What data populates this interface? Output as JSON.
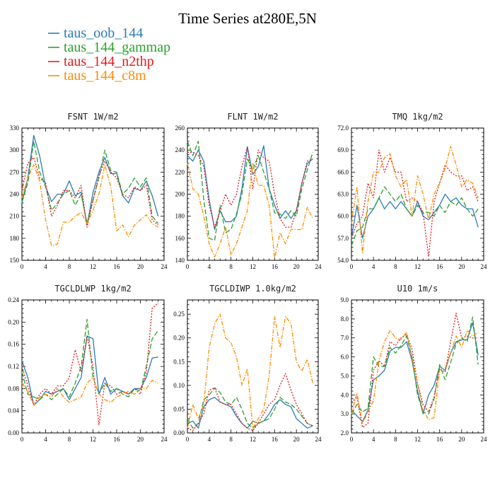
{
  "figure": {
    "title": "Time Series at280E,5N",
    "legend": [
      {
        "name": "taus_oob_144",
        "color": "#2b7bb9",
        "dash": "solid"
      },
      {
        "name": "taus_144_gammap",
        "color": "#2ca02c",
        "dash": "longdash"
      },
      {
        "name": "taus_144_n2thp",
        "color": "#e41a1c",
        "dash": "dot"
      },
      {
        "name": "taus_144_c8m",
        "color": "#ff8c00",
        "dash": "dashdot"
      }
    ]
  },
  "chart_data": [
    {
      "type": "line",
      "title": "FSNT   1W/m2",
      "xlim": [
        0,
        24
      ],
      "ylim": [
        150,
        330
      ],
      "xticks": [
        "0",
        "4",
        "8",
        "12",
        "16",
        "20",
        "24"
      ],
      "xtick_values": [
        0,
        4,
        8,
        12,
        16,
        20,
        24
      ],
      "yticks": [
        "150",
        "180",
        "210",
        "240",
        "270",
        "300",
        "330"
      ],
      "ytick_values": [
        150,
        180,
        210,
        240,
        270,
        300,
        330
      ],
      "x": [
        0,
        1,
        2,
        3,
        4,
        5,
        6,
        7,
        8,
        9,
        10,
        11,
        12,
        13,
        14,
        15,
        16,
        17,
        18,
        19,
        20,
        21,
        22,
        23
      ],
      "series": [
        {
          "name": "taus_oob_144",
          "values": [
            228,
            262,
            320,
            292,
            250,
            230,
            240,
            240,
            258,
            238,
            243,
            198,
            242,
            270,
            290,
            268,
            268,
            238,
            228,
            248,
            245,
            258,
            238,
            210
          ]
        },
        {
          "name": "taus_144_gammap",
          "values": [
            230,
            255,
            312,
            270,
            250,
            218,
            228,
            240,
            245,
            225,
            240,
            200,
            232,
            262,
            300,
            272,
            270,
            240,
            248,
            262,
            250,
            262,
            210,
            200
          ]
        },
        {
          "name": "taus_144_n2thp",
          "values": [
            245,
            282,
            290,
            262,
            255,
            210,
            225,
            245,
            245,
            235,
            252,
            195,
            232,
            265,
            285,
            270,
            262,
            240,
            235,
            250,
            245,
            252,
            205,
            198
          ]
        },
        {
          "name": "taus_144_c8m",
          "values": [
            235,
            262,
            280,
            258,
            205,
            170,
            172,
            202,
            202,
            210,
            215,
            200,
            218,
            240,
            280,
            250,
            190,
            198,
            182,
            198,
            205,
            212,
            200,
            195
          ]
        }
      ]
    },
    {
      "type": "line",
      "title": "FLNT   1W/m2",
      "xlim": [
        0,
        24
      ],
      "ylim": [
        140,
        260
      ],
      "xticks": [
        "0",
        "4",
        "8",
        "12",
        "16",
        "20",
        "24"
      ],
      "xtick_values": [
        0,
        4,
        8,
        12,
        16,
        20,
        24
      ],
      "yticks": [
        "140",
        "160",
        "180",
        "200",
        "220",
        "240",
        "260"
      ],
      "ytick_values": [
        140,
        160,
        180,
        200,
        220,
        240,
        260
      ],
      "x": [
        0,
        1,
        2,
        3,
        4,
        5,
        6,
        7,
        8,
        9,
        10,
        11,
        12,
        13,
        14,
        15,
        16,
        17,
        18,
        19,
        20,
        21,
        22,
        23
      ],
      "series": [
        {
          "name": "taus_oob_144",
          "values": [
            235,
            230,
            240,
            230,
            195,
            168,
            185,
            175,
            175,
            180,
            205,
            243,
            218,
            225,
            244,
            205,
            190,
            178,
            185,
            178,
            185,
            210,
            228,
            232
          ]
        },
        {
          "name": "taus_144_gammap",
          "values": [
            248,
            235,
            248,
            195,
            160,
            158,
            190,
            165,
            168,
            182,
            200,
            232,
            222,
            235,
            220,
            205,
            183,
            182,
            178,
            185,
            180,
            205,
            222,
            238
          ]
        },
        {
          "name": "taus_144_n2thp",
          "values": [
            238,
            238,
            235,
            225,
            190,
            170,
            185,
            200,
            190,
            200,
            225,
            243,
            205,
            240,
            233,
            230,
            200,
            178,
            170,
            170,
            185,
            210,
            230,
            232
          ]
        },
        {
          "name": "taus_144_c8m",
          "values": [
            228,
            205,
            200,
            180,
            155,
            143,
            155,
            170,
            145,
            155,
            170,
            185,
            228,
            208,
            208,
            190,
            142,
            165,
            155,
            168,
            168,
            168,
            188,
            178
          ]
        }
      ]
    },
    {
      "type": "line",
      "title": "TMQ   1kg/m2",
      "xlim": [
        0,
        24
      ],
      "ylim": [
        54,
        72
      ],
      "xticks": [
        "0",
        "4",
        "8",
        "12",
        "16",
        "20",
        "24"
      ],
      "xtick_values": [
        0,
        4,
        8,
        12,
        16,
        20,
        24
      ],
      "yticks": [
        "54.0",
        "57.0",
        "60.0",
        "63.0",
        "66.0",
        "69.0",
        "72.0"
      ],
      "ytick_values": [
        54,
        57,
        60,
        63,
        66,
        69,
        72
      ],
      "x": [
        0,
        1,
        2,
        3,
        4,
        5,
        6,
        7,
        8,
        9,
        10,
        11,
        12,
        13,
        14,
        15,
        16,
        17,
        18,
        19,
        20,
        21,
        22,
        23
      ],
      "series": [
        {
          "name": "taus_oob_144",
          "values": [
            57,
            61.5,
            57,
            60,
            61,
            62.5,
            61,
            62,
            61,
            62,
            61,
            60,
            62,
            60,
            59.5,
            60.5,
            61.5,
            63,
            62,
            62.5,
            61.5,
            61,
            61,
            58.5
          ]
        },
        {
          "name": "taus_144_gammap",
          "values": [
            56,
            58,
            58.5,
            61,
            61,
            62.5,
            64,
            63,
            62,
            63,
            61,
            60,
            61.5,
            60.5,
            60.5,
            60,
            61.5,
            60.5,
            62,
            61.5,
            62.5,
            61,
            60,
            61
          ]
        },
        {
          "name": "taus_144_n2thp",
          "values": [
            57,
            59,
            60,
            64.5,
            62.5,
            69,
            66,
            68,
            66,
            66,
            62,
            62.5,
            62,
            60.5,
            54.5,
            62,
            64.5,
            67,
            66,
            65.5,
            65.5,
            63.5,
            64,
            62
          ]
        },
        {
          "name": "taus_144_c8m",
          "values": [
            59,
            64,
            55,
            62,
            66,
            66,
            68,
            68.5,
            65.5,
            64,
            65,
            60,
            65.5,
            63,
            59.5,
            63,
            64.5,
            66.5,
            69.5,
            67,
            64,
            65,
            64.5,
            62.5
          ]
        }
      ]
    },
    {
      "type": "line",
      "title": "TGCLDLWP   1kg/m2",
      "xlim": [
        0,
        24
      ],
      "ylim": [
        0.0,
        0.24
      ],
      "xticks": [
        "0",
        "4",
        "8",
        "12",
        "16",
        "20",
        "24"
      ],
      "xtick_values": [
        0,
        4,
        8,
        12,
        16,
        20,
        24
      ],
      "yticks": [
        "0.00",
        "0.04",
        "0.08",
        "0.12",
        "0.16",
        "0.20",
        "0.24"
      ],
      "ytick_values": [
        0,
        0.04,
        0.08,
        0.12,
        0.16,
        0.2,
        0.24
      ],
      "x": [
        0,
        1,
        2,
        3,
        4,
        5,
        6,
        7,
        8,
        9,
        10,
        11,
        12,
        13,
        14,
        15,
        16,
        17,
        18,
        19,
        20,
        21,
        22,
        23
      ],
      "series": [
        {
          "name": "taus_oob_144",
          "values": [
            0.13,
            0.1,
            0.05,
            0.06,
            0.075,
            0.07,
            0.075,
            0.08,
            0.06,
            0.08,
            0.1,
            0.175,
            0.17,
            0.07,
            0.1,
            0.07,
            0.08,
            0.075,
            0.07,
            0.08,
            0.08,
            0.1,
            0.135,
            0.137
          ]
        },
        {
          "name": "taus_144_gammap",
          "values": [
            0.11,
            0.07,
            0.065,
            0.06,
            0.07,
            0.06,
            0.07,
            0.08,
            0.065,
            0.09,
            0.12,
            0.205,
            0.1,
            0.07,
            0.09,
            0.075,
            0.08,
            0.07,
            0.065,
            0.08,
            0.075,
            0.12,
            0.17,
            0.185
          ]
        },
        {
          "name": "taus_144_n2thp",
          "values": [
            0.12,
            0.085,
            0.05,
            0.07,
            0.08,
            0.07,
            0.085,
            0.085,
            0.1,
            0.15,
            0.11,
            0.175,
            0.12,
            0.015,
            0.09,
            0.085,
            0.07,
            0.075,
            0.07,
            0.08,
            0.07,
            0.11,
            0.225,
            0.235
          ]
        },
        {
          "name": "taus_144_c8m",
          "values": [
            0.09,
            0.075,
            0.05,
            0.065,
            0.07,
            0.065,
            0.08,
            0.065,
            0.055,
            0.06,
            0.065,
            0.09,
            0.1,
            0.07,
            0.06,
            0.055,
            0.065,
            0.07,
            0.075,
            0.07,
            0.08,
            0.08,
            0.095,
            0.09
          ]
        }
      ]
    },
    {
      "type": "line",
      "title": "TGCLDIWP   1.0kg/m2",
      "xlim": [
        0,
        24
      ],
      "ylim": [
        0.0,
        0.28
      ],
      "xticks": [
        "0",
        "4",
        "8",
        "12",
        "16",
        "20",
        "24"
      ],
      "xtick_values": [
        0,
        4,
        8,
        12,
        16,
        20,
        24
      ],
      "yticks": [
        "0.00",
        "0.05",
        "0.10",
        "0.15",
        "0.20",
        "0.25"
      ],
      "ytick_values": [
        0,
        0.05,
        0.1,
        0.15,
        0.2,
        0.25
      ],
      "x": [
        0,
        1,
        2,
        3,
        4,
        5,
        6,
        7,
        8,
        9,
        10,
        11,
        12,
        13,
        14,
        15,
        16,
        17,
        18,
        19,
        20,
        21,
        22,
        23
      ],
      "series": [
        {
          "name": "taus_oob_144",
          "values": [
            0.02,
            0.025,
            0.01,
            0.055,
            0.07,
            0.075,
            0.065,
            0.06,
            0.055,
            0.035,
            0.02,
            0.01,
            0.025,
            0.02,
            0.025,
            0.04,
            0.06,
            0.07,
            0.06,
            0.055,
            0.03,
            0.02,
            0.01,
            0.015
          ]
        },
        {
          "name": "taus_144_gammap",
          "values": [
            0.03,
            0.01,
            0.02,
            0.07,
            0.08,
            0.095,
            0.085,
            0.065,
            0.06,
            0.075,
            0.05,
            0.02,
            0.01,
            0.02,
            0.025,
            0.03,
            0.05,
            0.075,
            0.065,
            0.06,
            0.05,
            0.035,
            0.02,
            0.015
          ]
        },
        {
          "name": "taus_144_n2thp",
          "values": [
            0.01,
            0.005,
            0.02,
            0.04,
            0.09,
            0.095,
            0.065,
            0.06,
            0.06,
            0.04,
            0.02,
            0.01,
            0.005,
            0.02,
            0.04,
            0.06,
            0.07,
            0.1,
            0.125,
            0.09,
            0.06,
            0.04,
            0.02,
            0.015
          ]
        },
        {
          "name": "taus_144_c8m",
          "values": [
            0.01,
            0.06,
            0.03,
            0.06,
            0.18,
            0.23,
            0.25,
            0.2,
            0.19,
            0.16,
            0.1,
            0.135,
            0.01,
            0.03,
            0.05,
            0.12,
            0.245,
            0.18,
            0.245,
            0.23,
            0.15,
            0.13,
            0.155,
            0.105
          ]
        }
      ]
    },
    {
      "type": "line",
      "title": "U10   1m/s",
      "xlim": [
        0,
        24
      ],
      "ylim": [
        2.0,
        9.0
      ],
      "xticks": [
        "0",
        "4",
        "8",
        "12",
        "16",
        "20",
        "24"
      ],
      "xtick_values": [
        0,
        4,
        8,
        12,
        16,
        20,
        24
      ],
      "yticks": [
        "2.0",
        "3.0",
        "4.0",
        "5.0",
        "6.0",
        "7.0",
        "8.0",
        "9.0"
      ],
      "ytick_values": [
        2,
        3,
        4,
        5,
        6,
        7,
        8,
        9
      ],
      "x": [
        0,
        1,
        2,
        3,
        4,
        5,
        6,
        7,
        8,
        9,
        10,
        11,
        12,
        13,
        14,
        15,
        16,
        17,
        18,
        19,
        20,
        21,
        22,
        23
      ],
      "series": [
        {
          "name": "taus_oob_144",
          "values": [
            3.2,
            2.9,
            2.6,
            3.2,
            4.8,
            5.0,
            5.3,
            6.3,
            6.5,
            6.5,
            6.8,
            5.8,
            4.2,
            3.0,
            4.0,
            4.5,
            5.5,
            5.3,
            6.2,
            6.8,
            6.9,
            6.9,
            7.8,
            6.1
          ]
        },
        {
          "name": "taus_144_gammap",
          "values": [
            3.0,
            3.5,
            3.1,
            3.3,
            6.0,
            5.5,
            5.5,
            6.5,
            6.2,
            6.6,
            7.1,
            6.0,
            4.0,
            3.1,
            3.0,
            3.8,
            5.6,
            4.8,
            5.7,
            6.7,
            7.0,
            6.8,
            8.1,
            5.6
          ]
        },
        {
          "name": "taus_144_n2thp",
          "values": [
            3.6,
            3.9,
            2.3,
            2.5,
            5.3,
            5.8,
            5.5,
            6.8,
            6.6,
            7.0,
            7.2,
            6.4,
            4.6,
            3.5,
            3.1,
            3.9,
            5.4,
            5.2,
            6.8,
            8.3,
            7.0,
            7.1,
            7.0,
            7.0
          ]
        },
        {
          "name": "taus_144_c8m",
          "values": [
            3.0,
            4.1,
            2.5,
            3.1,
            3.7,
            5.8,
            6.8,
            7.4,
            7.0,
            6.9,
            7.3,
            6.0,
            4.6,
            3.2,
            2.7,
            2.8,
            5.3,
            5.4,
            6.2,
            7.1,
            6.5,
            7.4,
            7.1,
            7.3
          ]
        }
      ]
    }
  ]
}
